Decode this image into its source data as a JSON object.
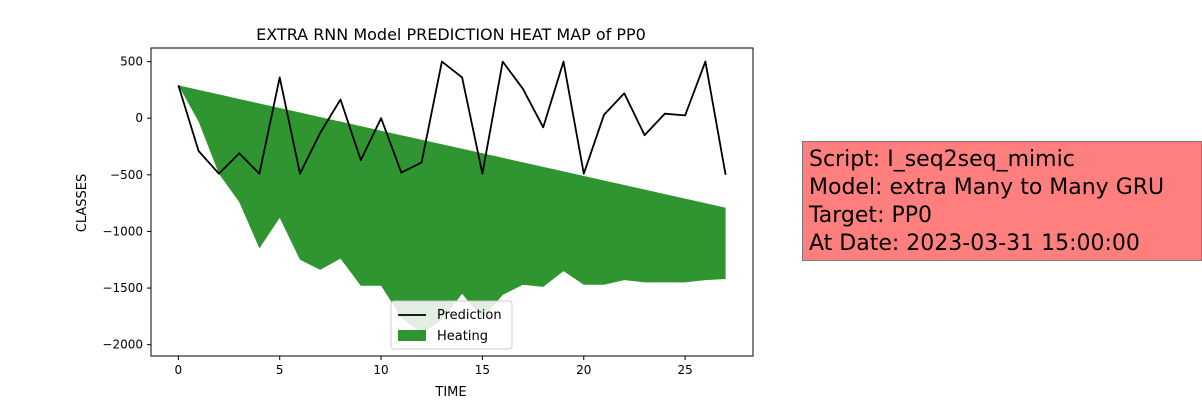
{
  "chart_data": {
    "type": "line",
    "title": "EXTRA RNN Model PREDICTION HEAT MAP of PP0",
    "xlabel": "TIME",
    "ylabel": "CLASSES",
    "xlim": [
      -1.35,
      28.35
    ],
    "ylim": [
      -2100,
      620
    ],
    "xticks": [
      0,
      5,
      10,
      15,
      20,
      25
    ],
    "yticks": [
      500,
      0,
      -500,
      -1000,
      -1500,
      -2000
    ],
    "xtick_labels": [
      "0",
      "5",
      "10",
      "15",
      "20",
      "25"
    ],
    "ytick_labels": [
      "500",
      "0",
      "−500",
      "−1000",
      "−1500",
      "−2000"
    ],
    "grid": false,
    "legend_position": "lower-center",
    "x": [
      0,
      1,
      2,
      3,
      4,
      5,
      6,
      7,
      8,
      9,
      10,
      11,
      12,
      13,
      14,
      15,
      16,
      17,
      18,
      19,
      20,
      21,
      22,
      23,
      24,
      25,
      26,
      27
    ],
    "series": [
      {
        "name": "Prediction",
        "type": "line",
        "color": "#000000",
        "values": [
          290,
          -290,
          -490,
          -310,
          -490,
          360,
          -490,
          -130,
          165,
          -370,
          0,
          -480,
          -390,
          500,
          360,
          -490,
          500,
          260,
          -80,
          500,
          -490,
          30,
          220,
          -150,
          40,
          25,
          500,
          -500
        ]
      },
      {
        "name": "Heating",
        "type": "area",
        "color": "#2e9530",
        "upper": [
          290,
          250,
          210,
          170,
          130,
          90,
          50,
          10,
          -30,
          -70,
          -110,
          -150,
          -190,
          -230,
          -270,
          -310,
          -350,
          -390,
          -430,
          -470,
          -510,
          -550,
          -590,
          -630,
          -670,
          -710,
          -750,
          -790
        ],
        "lower": [
          290,
          -30,
          -490,
          -740,
          -1150,
          -880,
          -1250,
          -1340,
          -1240,
          -1480,
          -1480,
          -1760,
          -1900,
          -1780,
          -1550,
          -1770,
          -1560,
          -1470,
          -1490,
          -1350,
          -1470,
          -1470,
          -1430,
          -1450,
          -1450,
          -1450,
          -1430,
          -1420
        ]
      }
    ]
  },
  "info_box": {
    "lines": [
      "Script: I_seq2seq_mimic",
      "Model: extra Many to Many GRU",
      "Target: PP0",
      "At Date: 2023-03-31 15:00:00"
    ],
    "background": "#ff7f7f"
  }
}
